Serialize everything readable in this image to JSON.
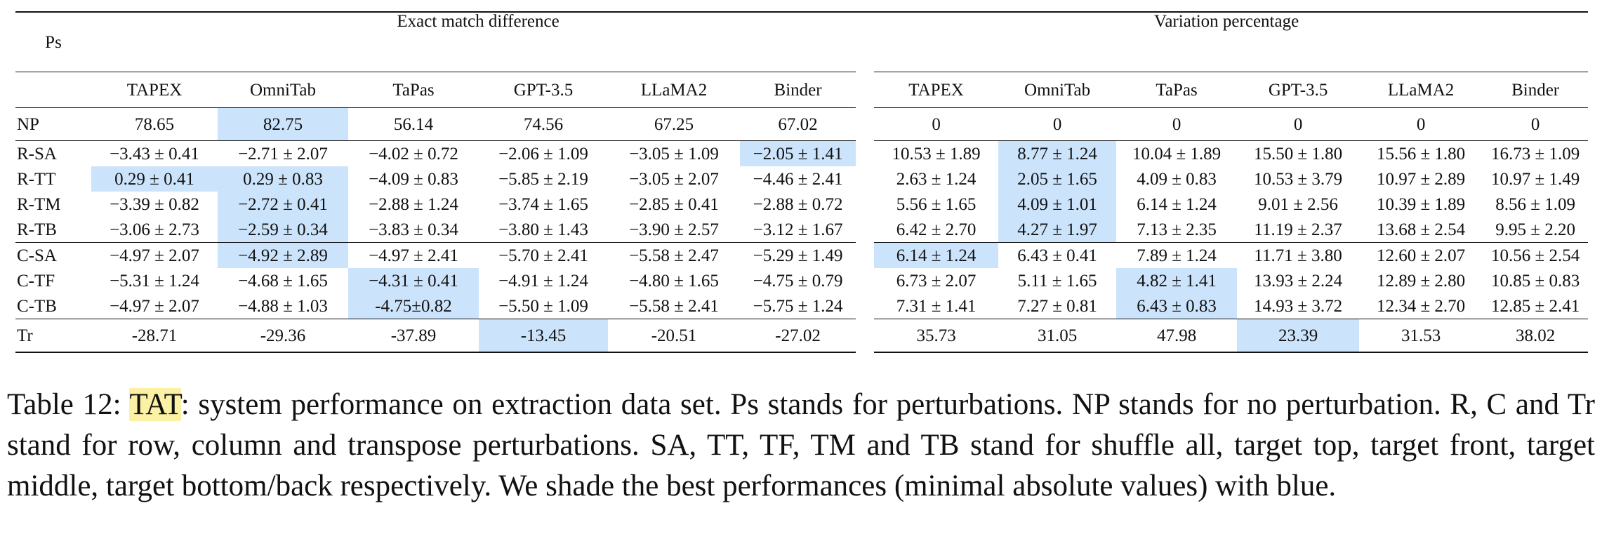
{
  "table": {
    "corner_label": "Ps",
    "group_headers": [
      "Exact match difference",
      "Variation percentage"
    ],
    "columns": [
      "TAPEX",
      "OmniTab",
      "TaPas",
      "GPT-3.5",
      "LLaMA2",
      "Binder",
      "TAPEX",
      "OmniTab",
      "TaPas",
      "GPT-3.5",
      "LLaMA2",
      "Binder"
    ],
    "rows": [
      {
        "label": "NP",
        "cells": [
          "78.65",
          "82.75",
          "56.14",
          "74.56",
          "67.25",
          "67.02",
          "0",
          "0",
          "0",
          "0",
          "0",
          "0"
        ]
      },
      {
        "label": "R-SA",
        "cells": [
          "−3.43 ± 0.41",
          "−2.71 ± 2.07",
          "−4.02 ± 0.72",
          "−2.06 ± 1.09",
          "−3.05 ± 1.09",
          "−2.05 ± 1.41",
          "10.53 ± 1.89",
          "8.77 ± 1.24",
          "10.04 ± 1.89",
          "15.50 ± 1.80",
          "15.56 ± 1.80",
          "16.73 ± 1.09"
        ]
      },
      {
        "label": "R-TT",
        "cells": [
          "0.29 ± 0.41",
          "0.29 ± 0.83",
          "−4.09 ± 0.83",
          "−5.85 ± 2.19",
          "−3.05 ± 2.07",
          "−4.46 ± 2.41",
          "2.63 ± 1.24",
          "2.05 ± 1.65",
          "4.09 ± 0.83",
          "10.53 ± 3.79",
          "10.97 ± 2.89",
          "10.97 ± 1.49"
        ]
      },
      {
        "label": "R-TM",
        "cells": [
          "−3.39 ± 0.82",
          "−2.72 ± 0.41",
          "−2.88 ± 1.24",
          "−3.74 ± 1.65",
          "−2.85 ± 0.41",
          "−2.88 ± 0.72",
          "5.56 ± 1.65",
          "4.09 ± 1.01",
          "6.14 ± 1.24",
          "9.01 ± 2.56",
          "10.39 ± 1.89",
          "8.56 ± 1.09"
        ]
      },
      {
        "label": "R-TB",
        "cells": [
          "−3.06 ± 2.73",
          "−2.59 ± 0.34",
          "−3.83 ± 0.34",
          "−3.80 ± 1.43",
          "−3.90 ± 2.57",
          "−3.12 ± 1.67",
          "6.42 ± 2.70",
          "4.27 ± 1.97",
          "7.13 ± 2.35",
          "11.19 ± 2.37",
          "13.68 ± 2.54",
          "9.95 ± 2.20"
        ]
      },
      {
        "label": "C-SA",
        "cells": [
          "−4.97 ± 2.07",
          "−4.92 ± 2.89",
          "−4.97 ± 2.41",
          "−5.70 ± 2.41",
          "−5.58 ± 2.47",
          "−5.29 ± 1.49",
          "6.14 ± 1.24",
          "6.43 ± 0.41",
          "7.89 ± 1.24",
          "11.71 ± 3.80",
          "12.60 ± 2.07",
          "10.56 ± 2.54"
        ]
      },
      {
        "label": "C-TF",
        "cells": [
          "−5.31 ± 1.24",
          "−4.68 ± 1.65",
          "−4.31 ± 0.41",
          "−4.91 ± 1.24",
          "−4.80 ± 1.65",
          "−4.75 ± 0.79",
          "6.73 ± 2.07",
          "5.11 ± 1.65",
          "4.82 ± 1.41",
          "13.93 ± 2.24",
          "12.89 ± 2.80",
          "10.85 ± 0.83"
        ]
      },
      {
        "label": "C-TB",
        "cells": [
          "−4.97 ± 2.07",
          "−4.88 ± 1.03",
          "-4.75±0.82",
          "−5.50 ± 1.09",
          "−5.58 ± 2.41",
          "−5.75 ± 1.24",
          "7.31 ± 1.41",
          "7.27 ± 0.81",
          "6.43 ± 0.83",
          "14.93 ± 3.72",
          "12.34 ± 2.70",
          "12.85 ± 2.41"
        ]
      },
      {
        "label": "Tr",
        "cells": [
          "-28.71",
          "-29.36",
          "-37.89",
          "-13.45",
          "-20.51",
          "-27.02",
          "35.73",
          "31.05",
          "47.98",
          "23.39",
          "31.53",
          "38.02"
        ]
      }
    ],
    "highlight_color": "#cce4fb"
  },
  "caption": {
    "prefix": "Table 12: ",
    "tag": "TAT",
    "body": ": system performance on extraction data set. Ps stands for perturbations. NP stands for no perturbation. R, C and Tr stand for row, column and transpose perturbations. SA, TT, TF, TM and TB stand for shuffle all, target top, target front, target middle, target bottom/back respectively. We shade the best performances (minimal absolute values) with blue.",
    "tag_color": "#fbf1a4"
  }
}
